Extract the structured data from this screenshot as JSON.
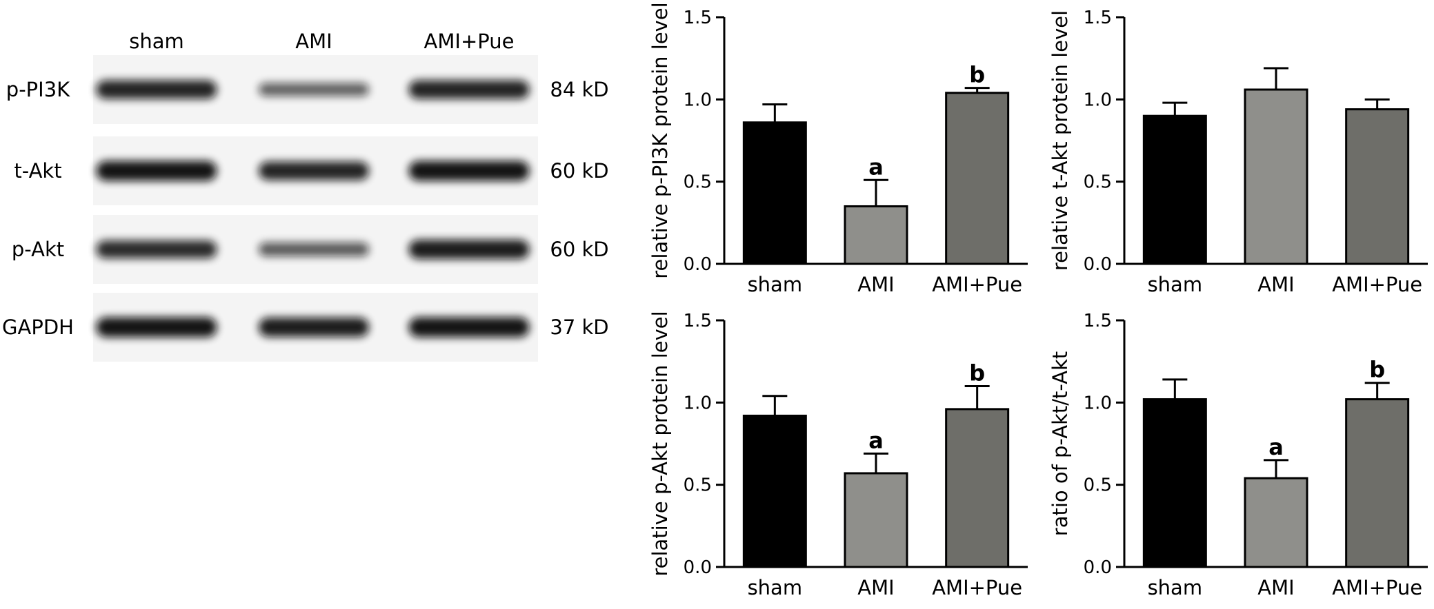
{
  "blot": {
    "columns": [
      "sham",
      "AMI",
      "AMI+Pue"
    ],
    "rows": [
      {
        "protein": "p-PI3K",
        "size": "84 kD",
        "bands": [
          0.85,
          0.45,
          0.85
        ]
      },
      {
        "protein": "t-Akt",
        "size": "60 kD",
        "bands": [
          0.95,
          0.85,
          0.95
        ]
      },
      {
        "protein": "p-Akt",
        "size": "60 kD",
        "bands": [
          0.8,
          0.5,
          0.9
        ]
      },
      {
        "protein": "GAPDH",
        "size": "37 kD",
        "bands": [
          0.95,
          0.9,
          0.95
        ]
      }
    ]
  },
  "colors": {
    "sham": "#000000",
    "AMI": "#8f8f8b",
    "AMI+Pue": "#6e6e69"
  },
  "chart_data": [
    {
      "type": "bar",
      "categories": [
        "sham",
        "AMI",
        "AMI+Pue"
      ],
      "values": [
        0.86,
        0.35,
        1.04
      ],
      "errors": [
        0.11,
        0.16,
        0.03
      ],
      "annotations": [
        "",
        "a",
        "b"
      ],
      "ylabel": "relative p-PI3K protein level",
      "ylim": [
        0,
        1.5
      ],
      "yticks": [
        "0.0",
        "0.5",
        "1.0",
        "1.5"
      ]
    },
    {
      "type": "bar",
      "categories": [
        "sham",
        "AMI",
        "AMI+Pue"
      ],
      "values": [
        0.9,
        1.06,
        0.94
      ],
      "errors": [
        0.08,
        0.13,
        0.06
      ],
      "annotations": [
        "",
        "",
        ""
      ],
      "ylabel": "relative t-Akt protein level",
      "ylim": [
        0,
        1.5
      ],
      "yticks": [
        "0.0",
        "0.5",
        "1.0",
        "1.5"
      ]
    },
    {
      "type": "bar",
      "categories": [
        "sham",
        "AMI",
        "AMI+Pue"
      ],
      "values": [
        0.92,
        0.57,
        0.96
      ],
      "errors": [
        0.12,
        0.12,
        0.14
      ],
      "annotations": [
        "",
        "a",
        "b"
      ],
      "ylabel": "relative p-Akt protein level",
      "ylim": [
        0,
        1.5
      ],
      "yticks": [
        "0.0",
        "0.5",
        "1.0",
        "1.5"
      ]
    },
    {
      "type": "bar",
      "categories": [
        "sham",
        "AMI",
        "AMI+Pue"
      ],
      "values": [
        1.02,
        0.54,
        1.02
      ],
      "errors": [
        0.12,
        0.11,
        0.1
      ],
      "annotations": [
        "",
        "a",
        "b"
      ],
      "ylabel": "ratio of p-Akt/t-Akt",
      "ylim": [
        0,
        1.5
      ],
      "yticks": [
        "0.0",
        "0.5",
        "1.0",
        "1.5"
      ]
    }
  ]
}
